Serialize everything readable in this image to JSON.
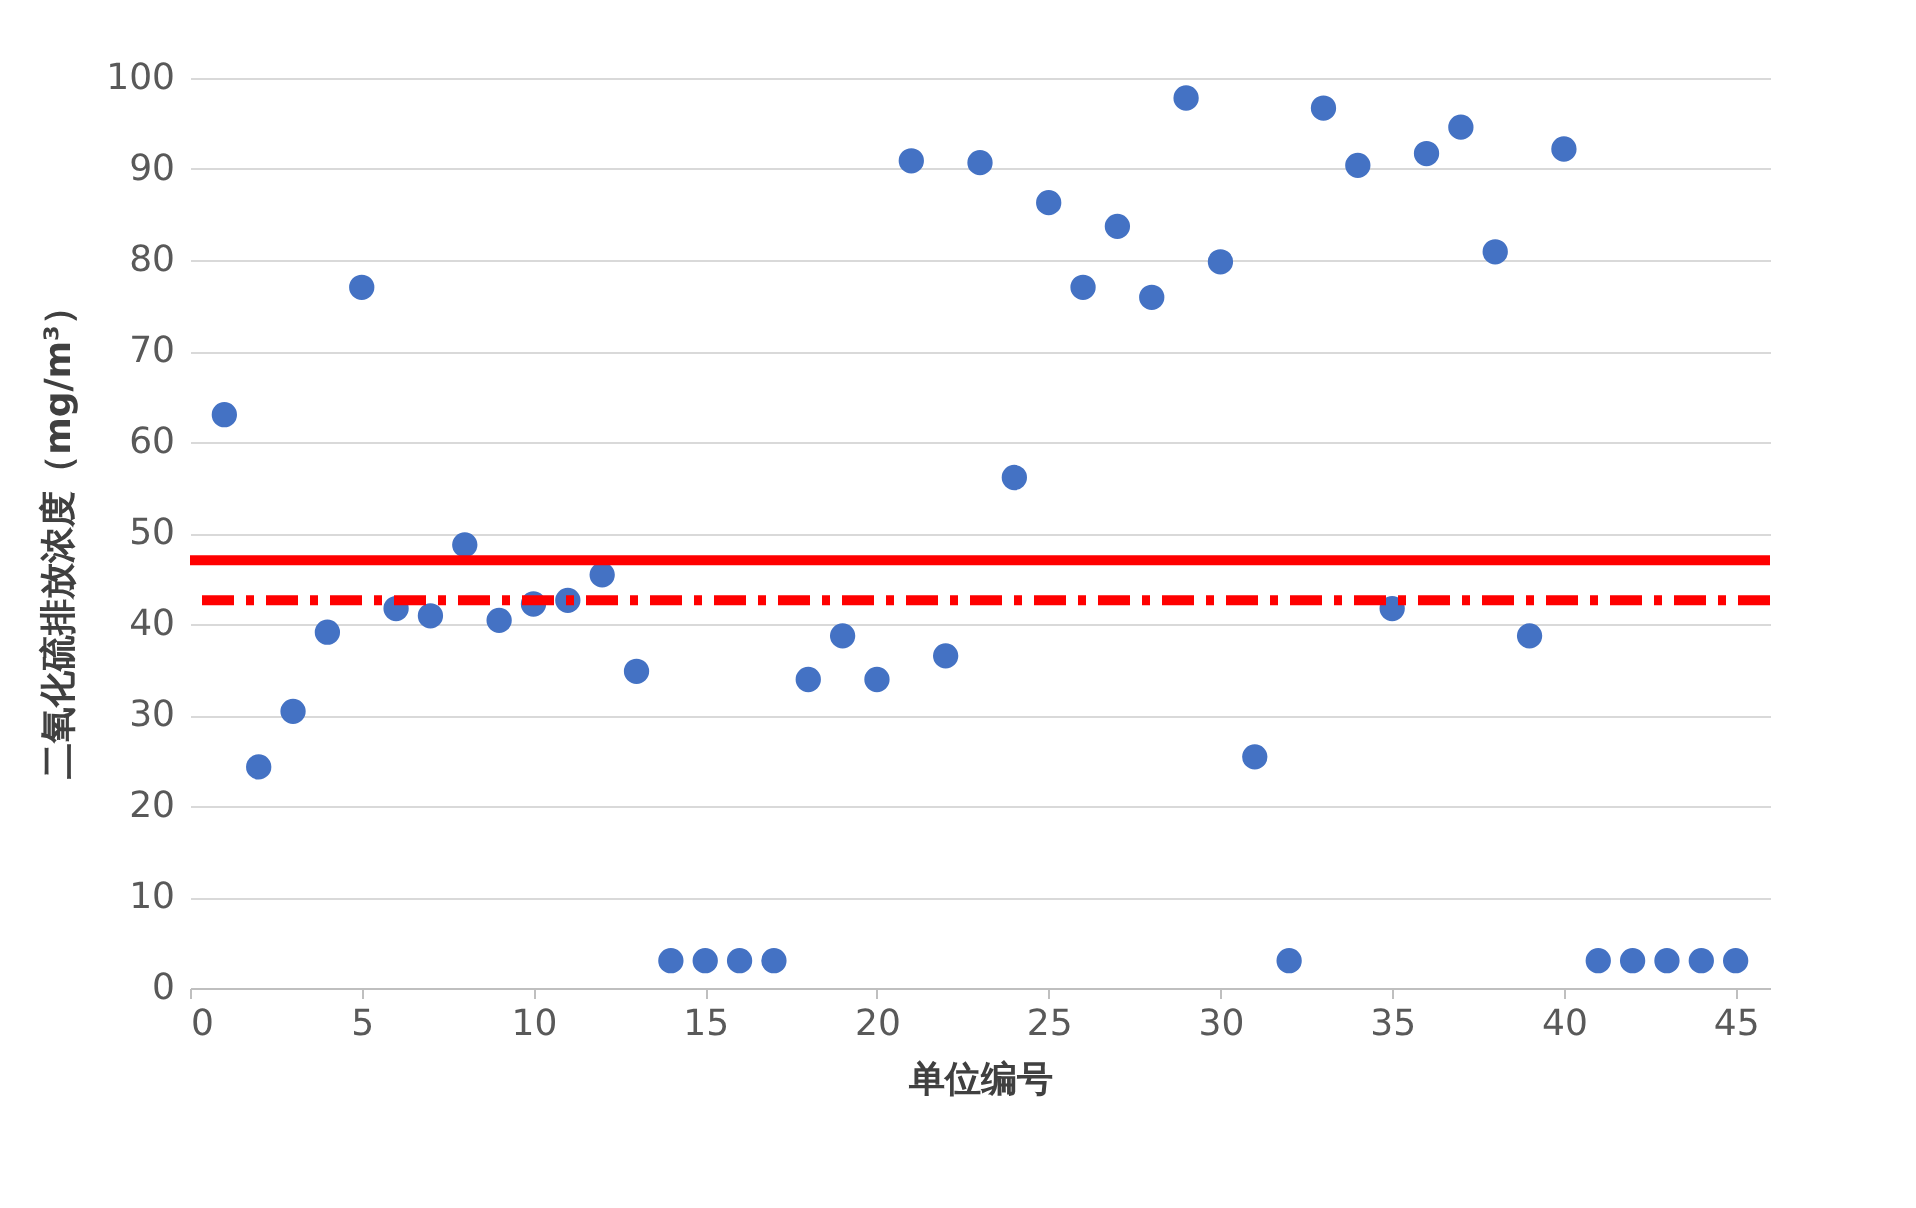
{
  "chart_data": {
    "type": "scatter",
    "xlabel": "单位编号",
    "ylabel": "二氧化硫排放浓度（mg/m³）",
    "x": [
      1,
      2,
      3,
      4,
      5,
      6,
      7,
      8,
      9,
      10,
      11,
      12,
      13,
      14,
      15,
      16,
      17,
      18,
      19,
      20,
      21,
      22,
      23,
      24,
      25,
      26,
      27,
      28,
      29,
      30,
      31,
      32,
      33,
      34,
      35,
      36,
      37,
      38,
      39,
      40,
      41,
      42,
      43,
      44,
      45
    ],
    "series": [
      {
        "color": "#4472c4",
        "values": [
          63,
          24.3,
          30.4,
          39.1,
          77,
          41.7,
          40.9,
          48.7,
          40.4,
          42.2,
          42.6,
          45.4,
          34.8,
          3,
          3,
          3,
          3,
          33.9,
          38.7,
          33.9,
          90.9,
          36.5,
          90.7,
          56.1,
          86.3,
          77,
          83.7,
          75.9,
          97.8,
          79.8,
          25.4,
          3,
          96.7,
          90.4,
          41.7,
          91.7,
          94.6,
          80.9,
          38.7,
          92.2,
          3,
          3,
          3,
          3,
          3
        ]
      }
    ],
    "xlim": [
      0,
      46
    ],
    "xticks": [
      0,
      5,
      10,
      15,
      20,
      25,
      30,
      35,
      40,
      45
    ],
    "ylim": [
      0,
      100
    ],
    "yticks": [
      0,
      10,
      20,
      30,
      40,
      50,
      60,
      70,
      80,
      90,
      100
    ],
    "grid": "y",
    "marker": "circle",
    "ref_lines": [
      {
        "axis": "y",
        "value": 47,
        "color": "#ff0000",
        "line_style": "solid"
      },
      {
        "axis": "y",
        "value": 42.6,
        "color": "#ff0000",
        "line_style": "dashed"
      }
    ]
  }
}
